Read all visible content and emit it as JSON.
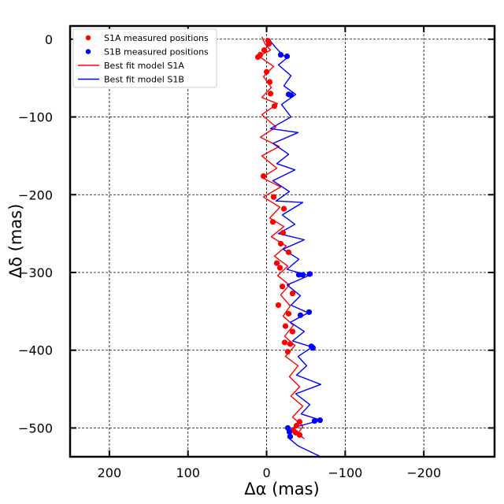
{
  "chart_data": {
    "type": "scatter",
    "xlabel": "Δα (mas)",
    "ylabel": "Δδ (mas)",
    "xlim": [
      250,
      -290
    ],
    "ylim": [
      -537,
      17
    ],
    "x_inverted": true,
    "grid": true,
    "legend_position": "upper-left",
    "x_ticks": [
      200,
      100,
      0,
      -100,
      -200
    ],
    "x_tick_labels": [
      "200",
      "100",
      "0",
      "−100",
      "−200"
    ],
    "y_ticks": [
      0,
      -100,
      -200,
      -300,
      -400,
      -500
    ],
    "y_tick_labels": [
      "0",
      "−100",
      "−200",
      "−300",
      "−400",
      "−500"
    ],
    "colors": {
      "S1A": "#ff0000",
      "S1B": "#0000ff"
    },
    "series": [
      {
        "name": "S1A measured positions",
        "kind": "points",
        "color": "#ff0000",
        "points": [
          [
            -2,
            -2
          ],
          [
            -3,
            -6
          ],
          [
            3,
            -14
          ],
          [
            8,
            -20
          ],
          [
            11,
            -23
          ],
          [
            0,
            -42
          ],
          [
            -4,
            -55
          ],
          [
            -5,
            -70
          ],
          [
            -10,
            -86
          ],
          [
            4,
            -176
          ],
          [
            -9,
            -203
          ],
          [
            -22,
            -218
          ],
          [
            -8,
            -235
          ],
          [
            -21,
            -249
          ],
          [
            -18,
            -263
          ],
          [
            -28,
            -274
          ],
          [
            -13,
            -288
          ],
          [
            -17,
            -294
          ],
          [
            -20,
            -318
          ],
          [
            -33,
            -327
          ],
          [
            -15,
            -342
          ],
          [
            -28,
            -353
          ],
          [
            -24,
            -369
          ],
          [
            -33,
            -376
          ],
          [
            -23,
            -390
          ],
          [
            -30,
            -392
          ],
          [
            -27,
            -402
          ],
          [
            -42,
            -492
          ],
          [
            -38,
            -497
          ],
          [
            -34,
            -503
          ],
          [
            -37,
            -506
          ],
          [
            -42,
            -509
          ]
        ]
      },
      {
        "name": "S1B measured positions",
        "kind": "points",
        "color": "#0000ff",
        "points": [
          [
            -18,
            -20
          ],
          [
            -26,
            -22
          ],
          [
            -28,
            -71
          ],
          [
            -31,
            -72
          ],
          [
            -41,
            -303
          ],
          [
            -46,
            -303
          ],
          [
            -55,
            -302
          ],
          [
            -43,
            -355
          ],
          [
            -54,
            -351
          ],
          [
            -57,
            -395
          ],
          [
            -59,
            -397
          ],
          [
            -61,
            -491
          ],
          [
            -68,
            -490
          ],
          [
            -27,
            -500
          ],
          [
            -29,
            -505
          ],
          [
            -30,
            -511
          ]
        ]
      },
      {
        "name": "Best fit model S1A",
        "kind": "line",
        "color": "#ff0000",
        "points": [
          [
            6,
            3
          ],
          [
            2,
            -6
          ],
          [
            -5,
            -14
          ],
          [
            10,
            -22
          ],
          [
            -9,
            -35
          ],
          [
            4,
            -48
          ],
          [
            -6,
            -62
          ],
          [
            6,
            -75
          ],
          [
            -14,
            -83
          ],
          [
            6,
            -97
          ],
          [
            -12,
            -113
          ],
          [
            8,
            -126
          ],
          [
            -16,
            -138
          ],
          [
            6,
            -150
          ],
          [
            -13,
            -166
          ],
          [
            6,
            -178
          ],
          [
            -18,
            -190
          ],
          [
            4,
            -203
          ],
          [
            -17,
            -216
          ],
          [
            -4,
            -230
          ],
          [
            -22,
            -241
          ],
          [
            -6,
            -254
          ],
          [
            -25,
            -266
          ],
          [
            -10,
            -279
          ],
          [
            -27,
            -292
          ],
          [
            -14,
            -304
          ],
          [
            -29,
            -316
          ],
          [
            -18,
            -329
          ],
          [
            -30,
            -343
          ],
          [
            -21,
            -356
          ],
          [
            -34,
            -368
          ],
          [
            -23,
            -382
          ],
          [
            -36,
            -394
          ],
          [
            -24,
            -408
          ],
          [
            -40,
            -420
          ],
          [
            -29,
            -434
          ],
          [
            -42,
            -447
          ],
          [
            -31,
            -459
          ],
          [
            -46,
            -472
          ],
          [
            -33,
            -486
          ],
          [
            -46,
            -498
          ],
          [
            -40,
            -507
          ],
          [
            -48,
            -514
          ]
        ]
      },
      {
        "name": "Best fit model S1B",
        "kind": "line",
        "color": "#0000ff",
        "points": [
          [
            -3,
            0
          ],
          [
            -11,
            -10
          ],
          [
            -20,
            -20
          ],
          [
            -26,
            -24
          ],
          [
            -15,
            -33
          ],
          [
            -31,
            -47
          ],
          [
            -22,
            -60
          ],
          [
            -37,
            -71
          ],
          [
            -19,
            -84
          ],
          [
            -31,
            -100
          ],
          [
            -5,
            -115
          ],
          [
            -40,
            -120
          ],
          [
            -8,
            -134
          ],
          [
            -28,
            -148
          ],
          [
            -13,
            -160
          ],
          [
            -36,
            -168
          ],
          [
            -8,
            -182
          ],
          [
            -29,
            -196
          ],
          [
            -12,
            -208
          ],
          [
            -46,
            -210
          ],
          [
            -20,
            -226
          ],
          [
            -36,
            -238
          ],
          [
            -15,
            -250
          ],
          [
            -48,
            -258
          ],
          [
            -21,
            -270
          ],
          [
            -41,
            -283
          ],
          [
            -26,
            -296
          ],
          [
            -54,
            -304
          ],
          [
            -26,
            -316
          ],
          [
            -43,
            -330
          ],
          [
            -31,
            -342
          ],
          [
            -53,
            -352
          ],
          [
            -30,
            -364
          ],
          [
            -48,
            -376
          ],
          [
            -33,
            -388
          ],
          [
            -58,
            -396
          ],
          [
            -40,
            -408
          ],
          [
            -51,
            -420
          ],
          [
            -38,
            -432
          ],
          [
            -69,
            -444
          ],
          [
            -37,
            -456
          ],
          [
            -55,
            -470
          ],
          [
            -44,
            -482
          ],
          [
            -69,
            -490
          ],
          [
            -32,
            -500
          ],
          [
            -27,
            -512
          ],
          [
            -40,
            -523
          ],
          [
            -69,
            -537
          ]
        ]
      }
    ]
  }
}
